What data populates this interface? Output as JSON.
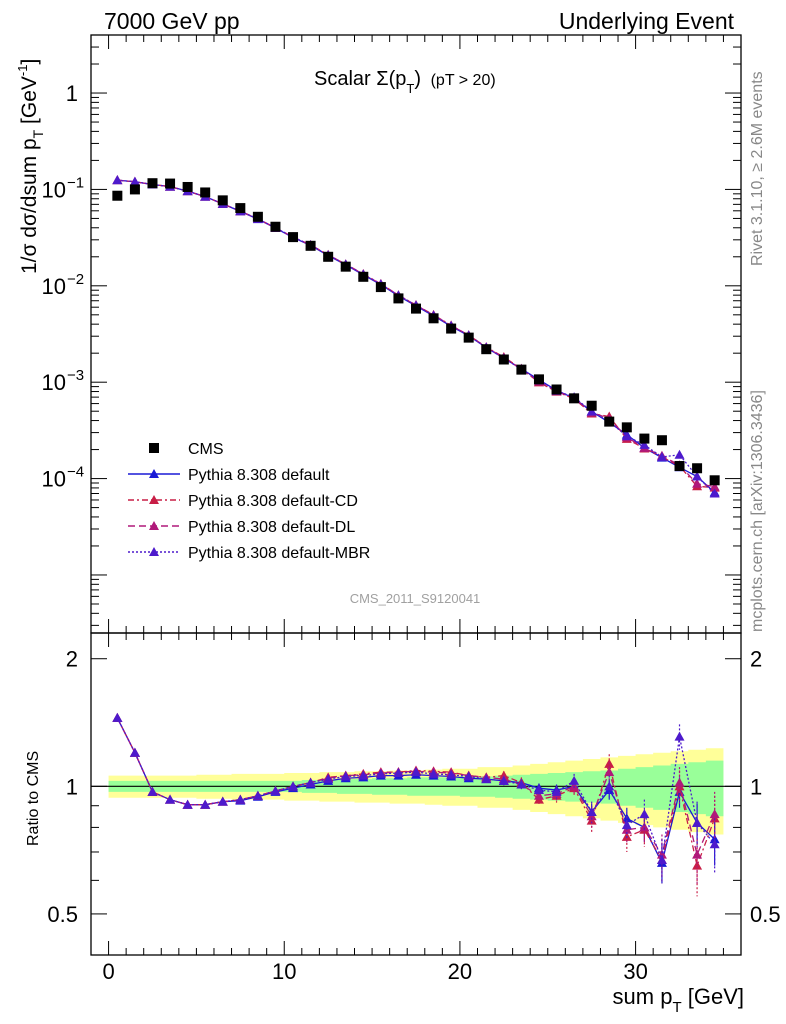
{
  "header": {
    "left": "7000 GeV pp",
    "right": "Underlying Event"
  },
  "side_labels": {
    "rivet": "Rivet 3.1.10, ≥ 2.6M events",
    "mcplots": "mcplots.cern.ch [arXiv:1306.3436]"
  },
  "watermark": "CMS_2011_S9120041",
  "title": {
    "main": "Scalar Σ(p",
    "sub_T": "T",
    "close": ")",
    "cut": "(pT > 20)"
  },
  "axes": {
    "ylabel_main": "1/σ dσ/dsum p",
    "ylabel_sub": "T",
    "ylabel_unit": " [GeV",
    "ylabel_sup": "-1",
    "ylabel_close": "]",
    "ylabel_ratio": "Ratio to CMS",
    "xlabel_main": "sum p",
    "xlabel_sub": "T",
    "xlabel_unit": " [GeV]",
    "xticks": [
      "0",
      "10",
      "20",
      "30"
    ],
    "yticks_ratio": [
      "0.5",
      "1",
      "2"
    ]
  },
  "legend": [
    {
      "label": "CMS",
      "color": "#000000",
      "marker": "square",
      "dash": ""
    },
    {
      "label": "Pythia 8.308 default",
      "color": "#1a1ad6",
      "marker": "triangle",
      "dash": ""
    },
    {
      "label": "Pythia 8.308 default-CD",
      "color": "#c81e46",
      "marker": "triangle",
      "dash": "6,3,2,3"
    },
    {
      "label": "Pythia 8.308 default-DL",
      "color": "#b0197a",
      "marker": "triangle",
      "dash": "7,4"
    },
    {
      "label": "Pythia 8.308 default-MBR",
      "color": "#4d1acc",
      "marker": "triangle",
      "dash": "2,2"
    }
  ],
  "chart_data": {
    "type": "scatter",
    "xlim": [
      -1,
      36
    ],
    "ylim_main": [
      2.5e-06,
      4
    ],
    "ylim_ratio": [
      0.4,
      2.3
    ],
    "y_log": true,
    "x": [
      0.5,
      1.5,
      2.5,
      3.5,
      4.5,
      5.5,
      6.5,
      7.5,
      8.5,
      9.5,
      10.5,
      11.5,
      12.5,
      13.5,
      14.5,
      15.5,
      16.5,
      17.5,
      18.5,
      19.5,
      20.5,
      21.5,
      22.5,
      23.5,
      24.5,
      25.5,
      26.5,
      27.5,
      28.5,
      29.5,
      30.5,
      31.5,
      32.5,
      33.5,
      34.5
    ],
    "data": {
      "name": "CMS",
      "values": [
        0.086,
        0.1,
        0.116,
        0.115,
        0.106,
        0.093,
        0.077,
        0.064,
        0.052,
        0.041,
        0.032,
        0.026,
        0.02,
        0.0158,
        0.0124,
        0.0097,
        0.0074,
        0.0058,
        0.0046,
        0.0036,
        0.0029,
        0.0022,
        0.00172,
        0.00135,
        0.00107,
        0.00084,
        0.00068,
        0.00057,
        0.00039,
        0.00034,
        0.00026,
        0.00025,
        0.000135,
        0.000128,
        9.6e-05
      ],
      "band_inner": [
        0.03,
        0.03,
        0.03,
        0.03,
        0.03,
        0.03,
        0.03,
        0.03,
        0.03,
        0.03,
        0.03,
        0.035,
        0.035,
        0.04,
        0.04,
        0.045,
        0.045,
        0.05,
        0.05,
        0.05,
        0.055,
        0.055,
        0.06,
        0.065,
        0.07,
        0.075,
        0.08,
        0.085,
        0.09,
        0.1,
        0.11,
        0.12,
        0.13,
        0.14,
        0.15
      ],
      "band_outer": [
        0.06,
        0.06,
        0.06,
        0.06,
        0.06,
        0.065,
        0.065,
        0.07,
        0.07,
        0.07,
        0.075,
        0.075,
        0.08,
        0.08,
        0.085,
        0.085,
        0.09,
        0.09,
        0.095,
        0.1,
        0.1,
        0.11,
        0.11,
        0.12,
        0.13,
        0.14,
        0.15,
        0.16,
        0.17,
        0.18,
        0.19,
        0.2,
        0.21,
        0.22,
        0.23
      ]
    },
    "series": [
      {
        "name": "Pythia 8.308 default",
        "ratio": [
          1.45,
          1.2,
          0.97,
          0.93,
          0.905,
          0.905,
          0.92,
          0.925,
          0.945,
          0.97,
          0.99,
          1.01,
          1.03,
          1.045,
          1.05,
          1.06,
          1.06,
          1.065,
          1.06,
          1.055,
          1.045,
          1.04,
          1.03,
          1.02,
          0.99,
          0.98,
          1.0,
          0.87,
          0.98,
          0.84,
          0.8,
          0.66,
          0.97,
          0.82,
          0.75
        ],
        "err": [
          0.01,
          0.01,
          0.01,
          0.01,
          0.01,
          0.01,
          0.01,
          0.01,
          0.01,
          0.01,
          0.01,
          0.01,
          0.01,
          0.01,
          0.01,
          0.01,
          0.01,
          0.01,
          0.01,
          0.01,
          0.015,
          0.015,
          0.02,
          0.02,
          0.025,
          0.03,
          0.03,
          0.04,
          0.05,
          0.05,
          0.06,
          0.07,
          0.08,
          0.09,
          0.1
        ]
      },
      {
        "name": "Pythia 8.308 default-CD",
        "ratio": [
          1.45,
          1.2,
          0.97,
          0.93,
          0.905,
          0.905,
          0.92,
          0.93,
          0.95,
          0.975,
          1.0,
          1.02,
          1.05,
          1.06,
          1.07,
          1.08,
          1.08,
          1.09,
          1.085,
          1.08,
          1.06,
          1.05,
          1.06,
          1.02,
          0.93,
          0.95,
          0.99,
          0.83,
          1.13,
          0.76,
          0.79,
          0.67,
          1.0,
          0.65,
          0.84
        ],
        "err": [
          0.01,
          0.01,
          0.01,
          0.01,
          0.01,
          0.01,
          0.01,
          0.01,
          0.01,
          0.01,
          0.01,
          0.01,
          0.01,
          0.01,
          0.01,
          0.01,
          0.01,
          0.015,
          0.015,
          0.015,
          0.02,
          0.02,
          0.025,
          0.03,
          0.03,
          0.035,
          0.04,
          0.05,
          0.06,
          0.06,
          0.07,
          0.08,
          0.09,
          0.1,
          0.11
        ]
      },
      {
        "name": "Pythia 8.308 default-DL",
        "ratio": [
          1.45,
          1.2,
          0.97,
          0.93,
          0.905,
          0.905,
          0.92,
          0.93,
          0.95,
          0.975,
          1.0,
          1.02,
          1.045,
          1.06,
          1.065,
          1.075,
          1.08,
          1.085,
          1.08,
          1.075,
          1.06,
          1.05,
          1.04,
          1.01,
          0.95,
          0.96,
          1.0,
          0.85,
          1.08,
          0.79,
          0.8,
          0.69,
          1.02,
          0.69,
          0.86
        ],
        "err": [
          0.01,
          0.01,
          0.01,
          0.01,
          0.01,
          0.01,
          0.01,
          0.01,
          0.01,
          0.01,
          0.01,
          0.01,
          0.01,
          0.01,
          0.01,
          0.01,
          0.01,
          0.015,
          0.015,
          0.015,
          0.02,
          0.02,
          0.025,
          0.03,
          0.03,
          0.035,
          0.04,
          0.05,
          0.06,
          0.06,
          0.07,
          0.08,
          0.09,
          0.1,
          0.11
        ]
      },
      {
        "name": "Pythia 8.308 default-MBR",
        "ratio": [
          1.45,
          1.2,
          0.97,
          0.93,
          0.905,
          0.905,
          0.92,
          0.93,
          0.95,
          0.975,
          1.0,
          1.02,
          1.04,
          1.055,
          1.06,
          1.07,
          1.075,
          1.08,
          1.07,
          1.065,
          1.055,
          1.04,
          1.03,
          1.01,
          0.98,
          0.97,
          1.03,
          0.87,
          1.0,
          0.81,
          0.86,
          0.67,
          1.31,
          0.82,
          0.73
        ],
        "err": [
          0.01,
          0.01,
          0.01,
          0.01,
          0.01,
          0.01,
          0.01,
          0.01,
          0.01,
          0.01,
          0.01,
          0.01,
          0.01,
          0.01,
          0.01,
          0.01,
          0.01,
          0.015,
          0.015,
          0.015,
          0.02,
          0.02,
          0.025,
          0.03,
          0.03,
          0.035,
          0.04,
          0.05,
          0.06,
          0.06,
          0.07,
          0.08,
          0.09,
          0.1,
          0.11
        ]
      }
    ]
  }
}
